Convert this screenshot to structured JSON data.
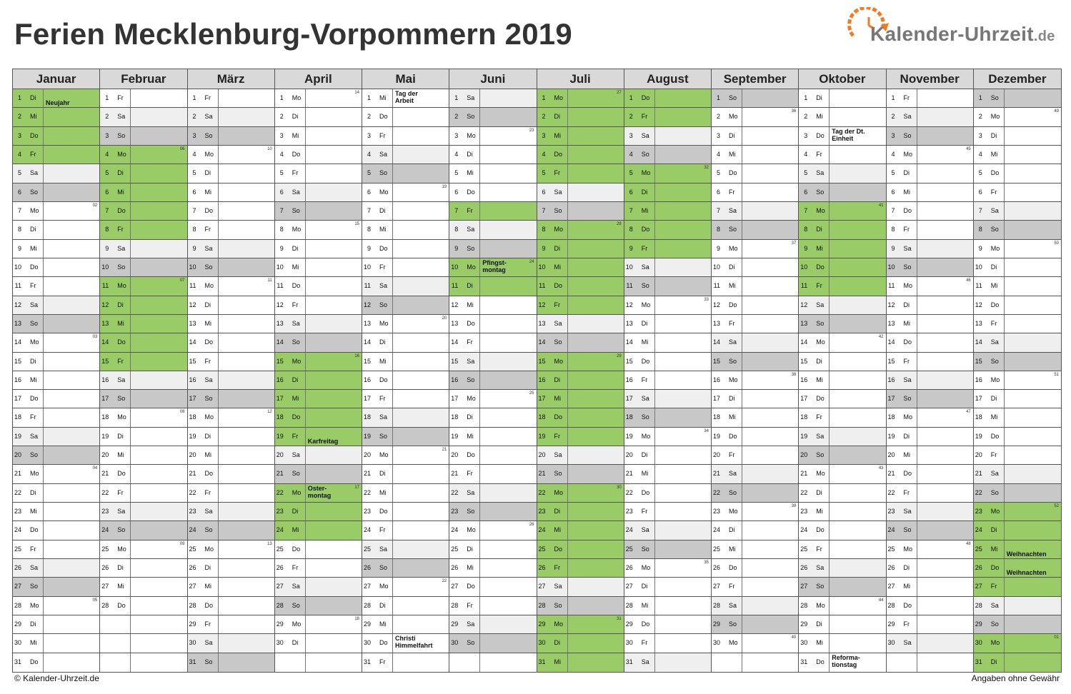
{
  "title": "Ferien Mecklenburg-Vorpommern 2019",
  "logo": {
    "text": "Kalender-Uhrzeit",
    "tld": ".de",
    "icon": "clock-icon",
    "color": "#f47920"
  },
  "colors": {
    "holiday": "#99cc66",
    "saturday": "#efefef",
    "sunday": "#c8c8c8",
    "header": "#d9d9d9"
  },
  "footer": {
    "left": "© Kalender-Uhrzeit.de",
    "right": "Angaben ohne Gewähr"
  },
  "months": [
    {
      "name": "Januar",
      "days": [
        "Di",
        "Mi",
        "Do",
        "Fr",
        "Sa",
        "So",
        "Mo",
        "Di",
        "Mi",
        "Do",
        "Fr",
        "Sa",
        "So",
        "Mo",
        "Di",
        "Mi",
        "Do",
        "Fr",
        "Sa",
        "So",
        "Mo",
        "Di",
        "Mi",
        "Do",
        "Fr",
        "Sa",
        "So",
        "Mo",
        "Di",
        "Mi",
        "Do"
      ],
      "holidays": [
        1,
        2,
        3,
        4
      ],
      "notes": {
        "1": "Neujahr"
      },
      "kw": {
        "7": "02",
        "14": "03",
        "21": "04",
        "28": "05"
      }
    },
    {
      "name": "Februar",
      "days": [
        "Fr",
        "Sa",
        "So",
        "Mo",
        "Di",
        "Mi",
        "Do",
        "Fr",
        "Sa",
        "So",
        "Mo",
        "Di",
        "Mi",
        "Do",
        "Fr",
        "Sa",
        "So",
        "Mo",
        "Di",
        "Mi",
        "Do",
        "Fr",
        "Sa",
        "So",
        "Mo",
        "Di",
        "Mi",
        "Do"
      ],
      "holidays": [
        4,
        5,
        6,
        7,
        8,
        11,
        12,
        13,
        14,
        15
      ],
      "notes": {},
      "kw": {
        "4": "06",
        "11": "07",
        "18": "08",
        "25": "09"
      }
    },
    {
      "name": "März",
      "days": [
        "Fr",
        "Sa",
        "So",
        "Mo",
        "Di",
        "Mi",
        "Do",
        "Fr",
        "Sa",
        "So",
        "Mo",
        "Di",
        "Mi",
        "Do",
        "Fr",
        "Sa",
        "So",
        "Mo",
        "Di",
        "Mi",
        "Do",
        "Fr",
        "Sa",
        "So",
        "Mo",
        "Di",
        "Mi",
        "Do",
        "Fr",
        "Sa",
        "So"
      ],
      "holidays": [],
      "notes": {},
      "kw": {
        "4": "10",
        "11": "11",
        "18": "12",
        "25": "13"
      }
    },
    {
      "name": "April",
      "days": [
        "Mo",
        "Di",
        "Mi",
        "Do",
        "Fr",
        "Sa",
        "So",
        "Mo",
        "Di",
        "Mi",
        "Do",
        "Fr",
        "Sa",
        "So",
        "Mo",
        "Di",
        "Mi",
        "Do",
        "Fr",
        "Sa",
        "So",
        "Mo",
        "Di",
        "Mi",
        "Do",
        "Fr",
        "Sa",
        "So",
        "Mo",
        "Di"
      ],
      "holidays": [
        15,
        16,
        17,
        18,
        19,
        22,
        23,
        24
      ],
      "notes": {
        "19": "Karfreitag",
        "22": "Oster-\nmontag"
      },
      "kw": {
        "1": "14",
        "8": "15",
        "15": "16",
        "22": "17",
        "29": "18"
      }
    },
    {
      "name": "Mai",
      "days": [
        "Mi",
        "Do",
        "Fr",
        "Sa",
        "So",
        "Mo",
        "Di",
        "Mi",
        "Do",
        "Fr",
        "Sa",
        "So",
        "Mo",
        "Di",
        "Mi",
        "Do",
        "Fr",
        "Sa",
        "So",
        "Mo",
        "Di",
        "Mi",
        "Do",
        "Fr",
        "Sa",
        "So",
        "Mo",
        "Di",
        "Mi",
        "Do",
        "Fr"
      ],
      "holidays": [],
      "notes": {
        "1": "Tag der\nArbeit",
        "30": "Christi\nHimmelfahrt"
      },
      "kw": {
        "6": "19",
        "13": "20",
        "20": "21",
        "27": "22"
      }
    },
    {
      "name": "Juni",
      "days": [
        "Sa",
        "So",
        "Mo",
        "Di",
        "Mi",
        "Do",
        "Fr",
        "Sa",
        "So",
        "Mo",
        "Di",
        "Mi",
        "Do",
        "Fr",
        "Sa",
        "So",
        "Mo",
        "Di",
        "Mi",
        "Do",
        "Fr",
        "Sa",
        "So",
        "Mo",
        "Di",
        "Mi",
        "Do",
        "Fr",
        "Sa",
        "So"
      ],
      "holidays": [
        7,
        10,
        11
      ],
      "notes": {
        "10": "Pfingst-\nmontag"
      },
      "kw": {
        "3": "23",
        "10": "24",
        "17": "25",
        "24": "26"
      }
    },
    {
      "name": "Juli",
      "days": [
        "Mo",
        "Di",
        "Mi",
        "Do",
        "Fr",
        "Sa",
        "So",
        "Mo",
        "Di",
        "Mi",
        "Do",
        "Fr",
        "Sa",
        "So",
        "Mo",
        "Di",
        "Mi",
        "Do",
        "Fr",
        "Sa",
        "So",
        "Mo",
        "Di",
        "Mi",
        "Do",
        "Fr",
        "Sa",
        "So",
        "Mo",
        "Di",
        "Mi"
      ],
      "holidays": [
        1,
        2,
        3,
        4,
        5,
        8,
        9,
        10,
        11,
        12,
        15,
        16,
        17,
        18,
        19,
        22,
        23,
        24,
        25,
        26,
        29,
        30,
        31
      ],
      "notes": {},
      "kw": {
        "1": "27",
        "8": "28",
        "15": "29",
        "22": "30",
        "29": "31"
      }
    },
    {
      "name": "August",
      "days": [
        "Do",
        "Fr",
        "Sa",
        "So",
        "Mo",
        "Di",
        "Mi",
        "Do",
        "Fr",
        "Sa",
        "So",
        "Mo",
        "Di",
        "Mi",
        "Do",
        "Fr",
        "Sa",
        "So",
        "Mo",
        "Di",
        "Mi",
        "Do",
        "Fr",
        "Sa",
        "So",
        "Mo",
        "Di",
        "Mi",
        "Do",
        "Fr",
        "Sa"
      ],
      "holidays": [
        1,
        2,
        5,
        6,
        7,
        8,
        9
      ],
      "notes": {},
      "kw": {
        "5": "32",
        "12": "33",
        "19": "34",
        "26": "35"
      }
    },
    {
      "name": "September",
      "days": [
        "So",
        "Mo",
        "Di",
        "Mi",
        "Do",
        "Fr",
        "Sa",
        "So",
        "Mo",
        "Di",
        "Mi",
        "Do",
        "Fr",
        "Sa",
        "So",
        "Mo",
        "Di",
        "Mi",
        "Do",
        "Fr",
        "Sa",
        "So",
        "Mo",
        "Di",
        "Mi",
        "Do",
        "Fr",
        "Sa",
        "So",
        "Mo"
      ],
      "holidays": [],
      "notes": {},
      "kw": {
        "2": "36",
        "9": "37",
        "16": "38",
        "23": "39",
        "30": "40"
      }
    },
    {
      "name": "Oktober",
      "days": [
        "Di",
        "Mi",
        "Do",
        "Fr",
        "Sa",
        "So",
        "Mo",
        "Di",
        "Mi",
        "Do",
        "Fr",
        "Sa",
        "So",
        "Mo",
        "Di",
        "Mi",
        "Do",
        "Fr",
        "Sa",
        "So",
        "Mo",
        "Di",
        "Mi",
        "Do",
        "Fr",
        "Sa",
        "So",
        "Mo",
        "Di",
        "Mi",
        "Do"
      ],
      "holidays": [
        7,
        8,
        9,
        10,
        11
      ],
      "notes": {
        "3": "Tag der Dt.\nEinheit",
        "31": "Reforma-\ntionstag"
      },
      "kw": {
        "7": "41",
        "14": "42",
        "21": "43",
        "28": "44"
      }
    },
    {
      "name": "November",
      "days": [
        "Fr",
        "Sa",
        "So",
        "Mo",
        "Di",
        "Mi",
        "Do",
        "Fr",
        "Sa",
        "So",
        "Mo",
        "Di",
        "Mi",
        "Do",
        "Fr",
        "Sa",
        "So",
        "Mo",
        "Di",
        "Mi",
        "Do",
        "Fr",
        "Sa",
        "So",
        "Mo",
        "Di",
        "Mi",
        "Do",
        "Fr",
        "Sa"
      ],
      "holidays": [],
      "notes": {},
      "kw": {
        "4": "45",
        "11": "46",
        "18": "47",
        "25": "48"
      }
    },
    {
      "name": "Dezember",
      "days": [
        "So",
        "Mo",
        "Di",
        "Mi",
        "Do",
        "Fr",
        "Sa",
        "So",
        "Mo",
        "Di",
        "Mi",
        "Do",
        "Fr",
        "Sa",
        "So",
        "Mo",
        "Di",
        "Mi",
        "Do",
        "Fr",
        "Sa",
        "So",
        "Mo",
        "Di",
        "Mi",
        "Do",
        "Fr",
        "Sa",
        "So",
        "Mo",
        "Di"
      ],
      "holidays": [
        23,
        24,
        25,
        26,
        27,
        30,
        31
      ],
      "notes": {
        "25": "Weihnachten",
        "26": "Weihnachten"
      },
      "kw": {
        "2": "49",
        "9": "50",
        "16": "51",
        "23": "52",
        "30": "01"
      }
    }
  ]
}
